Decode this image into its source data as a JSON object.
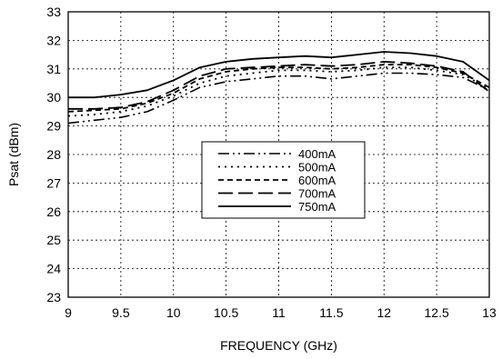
{
  "chart_data": {
    "type": "line",
    "title": "",
    "xlabel": "FREQUENCY (GHz)",
    "ylabel": "Psat (dBm)",
    "xlim": [
      9,
      13
    ],
    "ylim": [
      23,
      33
    ],
    "xticks": [
      9,
      9.5,
      10,
      10.5,
      11,
      11.5,
      12,
      12.5,
      13
    ],
    "yticks": [
      23,
      24,
      25,
      26,
      27,
      28,
      29,
      30,
      31,
      32,
      33
    ],
    "grid": true,
    "legend_position": "center",
    "series": [
      {
        "name": "400mA",
        "x": [
          9.0,
          9.25,
          9.5,
          9.75,
          10.0,
          10.25,
          10.5,
          10.75,
          11.0,
          11.25,
          11.5,
          11.75,
          12.0,
          12.25,
          12.5,
          12.75,
          13.0
        ],
        "y": [
          29.1,
          29.2,
          29.3,
          29.5,
          29.9,
          30.35,
          30.55,
          30.65,
          30.75,
          30.75,
          30.65,
          30.75,
          30.85,
          30.85,
          30.8,
          30.7,
          30.25
        ]
      },
      {
        "name": "500mA",
        "x": [
          9.0,
          9.25,
          9.5,
          9.75,
          10.0,
          10.25,
          10.5,
          10.75,
          11.0,
          11.25,
          11.5,
          11.75,
          12.0,
          12.25,
          12.5,
          12.75,
          13.0
        ],
        "y": [
          29.35,
          29.4,
          29.5,
          29.7,
          30.05,
          30.5,
          30.75,
          30.85,
          30.95,
          30.95,
          30.9,
          30.95,
          31.05,
          31.05,
          30.95,
          30.8,
          30.3
        ]
      },
      {
        "name": "600mA",
        "x": [
          9.0,
          9.25,
          9.5,
          9.75,
          10.0,
          10.25,
          10.5,
          10.75,
          11.0,
          11.25,
          11.5,
          11.75,
          12.0,
          12.25,
          12.5,
          12.75,
          13.0
        ],
        "y": [
          29.5,
          29.55,
          29.6,
          29.8,
          30.15,
          30.65,
          30.9,
          31.0,
          31.05,
          31.05,
          31.0,
          31.05,
          31.15,
          31.15,
          31.05,
          30.85,
          30.35
        ]
      },
      {
        "name": "700mA",
        "x": [
          9.0,
          9.25,
          9.5,
          9.75,
          10.0,
          10.25,
          10.5,
          10.75,
          11.0,
          11.25,
          11.5,
          11.75,
          12.0,
          12.25,
          12.5,
          12.75,
          13.0
        ],
        "y": [
          29.6,
          29.6,
          29.65,
          29.85,
          30.25,
          30.75,
          31.0,
          31.05,
          31.1,
          31.15,
          31.1,
          31.15,
          31.25,
          31.2,
          31.1,
          30.9,
          30.2
        ]
      },
      {
        "name": "750mA",
        "x": [
          9.0,
          9.25,
          9.5,
          9.75,
          10.0,
          10.25,
          10.5,
          10.75,
          11.0,
          11.25,
          11.5,
          11.75,
          12.0,
          12.25,
          12.5,
          12.75,
          13.0
        ],
        "y": [
          30.0,
          30.0,
          30.1,
          30.25,
          30.6,
          31.05,
          31.25,
          31.35,
          31.4,
          31.45,
          31.4,
          31.5,
          31.6,
          31.55,
          31.45,
          31.25,
          30.6
        ]
      }
    ]
  }
}
